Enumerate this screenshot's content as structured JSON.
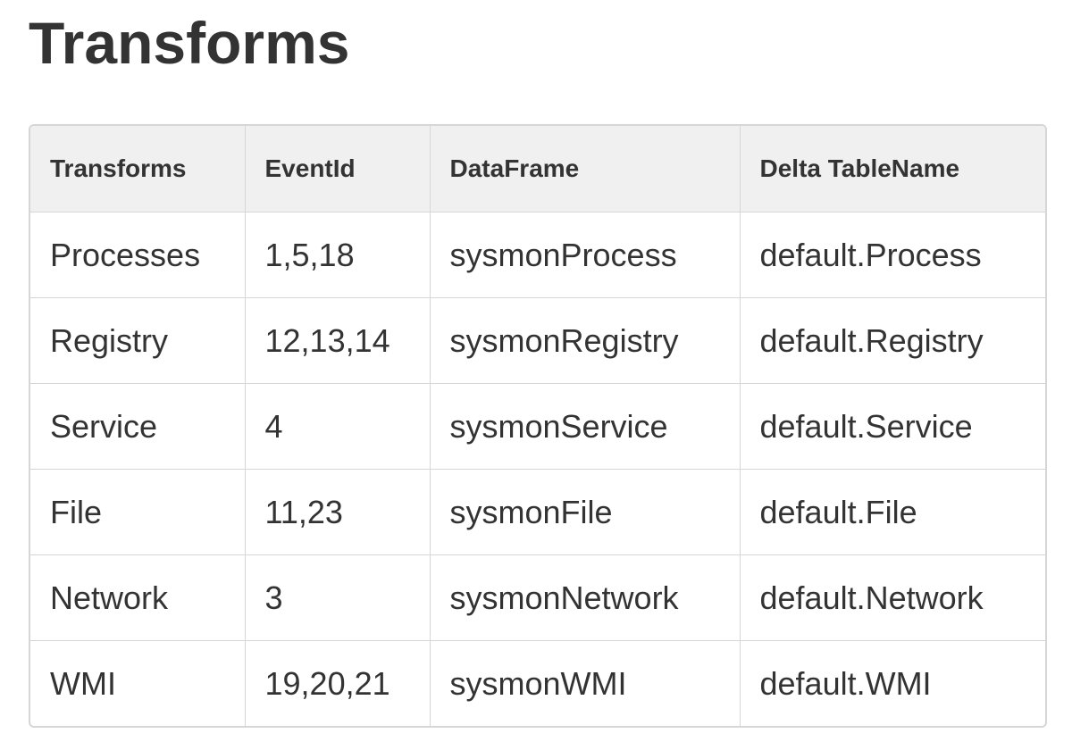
{
  "title": "Transforms",
  "table": {
    "headers": [
      "Transforms",
      "EventId",
      "DataFrame",
      "Delta TableName"
    ],
    "rows": [
      [
        "Processes",
        "1,5,18",
        "sysmonProcess",
        "default.Process"
      ],
      [
        "Registry",
        "12,13,14",
        "sysmonRegistry",
        "default.Registry"
      ],
      [
        "Service",
        "4",
        "sysmonService",
        "default.Service"
      ],
      [
        "File",
        "11,23",
        "sysmonFile",
        "default.File"
      ],
      [
        "Network",
        "3",
        "sysmonNetwork",
        "default.Network"
      ],
      [
        "WMI",
        "19,20,21",
        "sysmonWMI",
        "default.WMI"
      ]
    ]
  }
}
